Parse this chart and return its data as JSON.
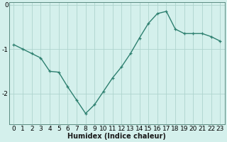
{
  "x": [
    0,
    1,
    2,
    3,
    4,
    5,
    6,
    7,
    8,
    9,
    10,
    11,
    12,
    13,
    14,
    15,
    16,
    17,
    18,
    19,
    20,
    21,
    22,
    23
  ],
  "y": [
    -0.9,
    -1.0,
    -1.1,
    -1.2,
    -1.5,
    -1.52,
    -1.85,
    -2.15,
    -2.45,
    -2.25,
    -1.95,
    -1.65,
    -1.4,
    -1.1,
    -0.75,
    -0.42,
    -0.2,
    -0.15,
    -0.55,
    -0.65,
    -0.65,
    -0.65,
    -0.72,
    -0.82
  ],
  "line_color": "#2e8070",
  "marker": "+",
  "marker_size": 3,
  "bg_color": "#d4f0ec",
  "grid_color": "#aed4ce",
  "xlabel": "Humidex (Indice chaleur)",
  "ylim": [
    -2.7,
    0.05
  ],
  "xlim": [
    -0.5,
    23.5
  ],
  "yticks": [
    0,
    -1,
    -2
  ],
  "ytick_labels": [
    "0",
    "-1",
    "-2"
  ],
  "xticks": [
    0,
    1,
    2,
    3,
    4,
    5,
    6,
    7,
    8,
    9,
    10,
    11,
    12,
    13,
    14,
    15,
    16,
    17,
    18,
    19,
    20,
    21,
    22,
    23
  ],
  "xlabel_fontsize": 7,
  "tick_fontsize": 6.5,
  "line_width": 1.0,
  "fig_bg": "#d4f0ec",
  "spine_color": "#5a8a80"
}
